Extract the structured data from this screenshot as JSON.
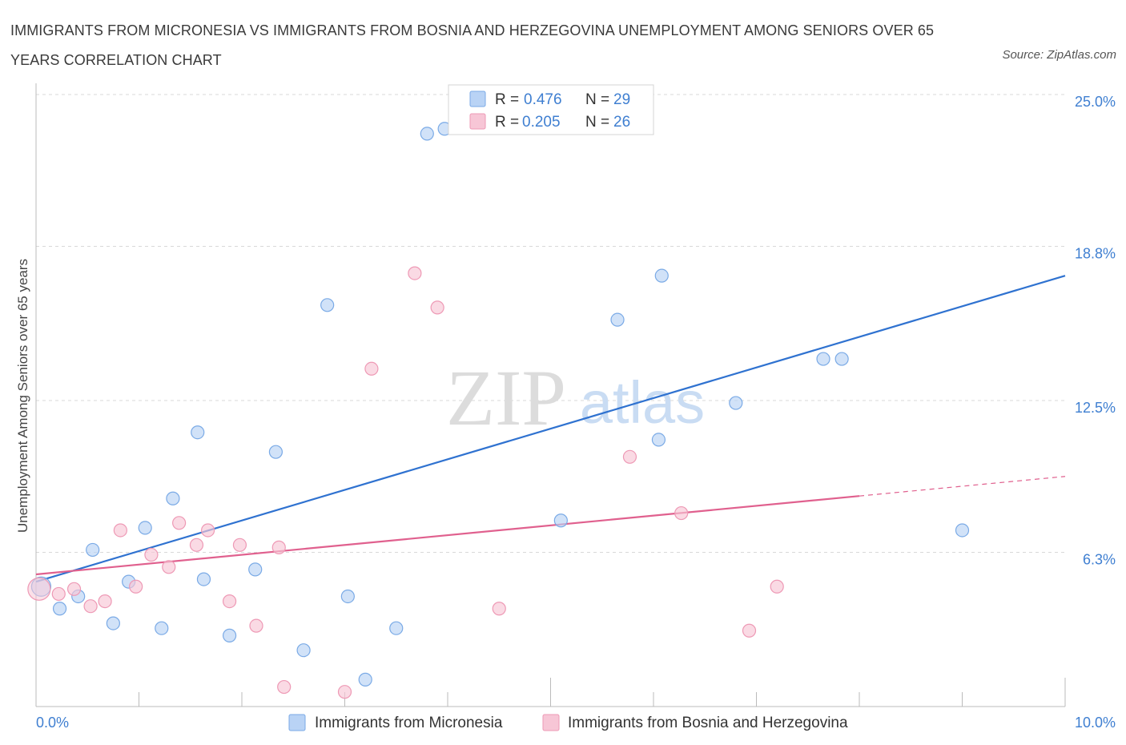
{
  "title": "IMMIGRANTS FROM MICRONESIA VS IMMIGRANTS FROM BOSNIA AND HERZEGOVINA UNEMPLOYMENT AMONG SENIORS OVER 65 YEARS CORRELATION CHART",
  "source": "Source: ZipAtlas.com",
  "watermark": {
    "zip": "ZIP",
    "atlas": "atlas"
  },
  "colors": {
    "blue_fill": "#b9d3f5",
    "blue_stroke": "#7aaae6",
    "blue_line": "#2f72d0",
    "pink_fill": "#f7c6d6",
    "pink_stroke": "#ee99b5",
    "pink_line": "#e0608e",
    "accent_text": "#3f7fd1",
    "grid": "#d9d9d9"
  },
  "legend": {
    "r_label": "R =",
    "n_label": "N =",
    "rows": [
      {
        "r": "0.476",
        "n": "29"
      },
      {
        "r": "0.205",
        "n": "26"
      }
    ]
  },
  "chart_data": {
    "type": "scatter",
    "title": "IMMIGRANTS FROM MICRONESIA VS IMMIGRANTS FROM BOSNIA AND HERZEGOVINA UNEMPLOYMENT AMONG SENIORS OVER 65 YEARS CORRELATION CHART",
    "xlabel": "",
    "ylabel": "Unemployment Among Seniors over 65 years",
    "xlim": [
      0,
      10
    ],
    "ylim": [
      0,
      25
    ],
    "x_tick_labels": [
      "0.0%",
      "10.0%"
    ],
    "y_ticks": [
      6.3,
      12.5,
      18.8,
      25.0
    ],
    "y_tick_labels": [
      "6.3%",
      "12.5%",
      "18.8%",
      "25.0%"
    ],
    "grid": true,
    "legend_position": "top-center",
    "series": [
      {
        "name": "Immigrants from Micronesia",
        "color": "#b9d3f5",
        "points": [
          [
            0.05,
            4.9
          ],
          [
            0.23,
            4.0
          ],
          [
            0.41,
            4.5
          ],
          [
            0.55,
            6.4
          ],
          [
            0.75,
            3.4
          ],
          [
            0.9,
            5.1
          ],
          [
            1.06,
            7.3
          ],
          [
            1.22,
            3.2
          ],
          [
            1.33,
            8.5
          ],
          [
            1.57,
            11.2
          ],
          [
            1.63,
            5.2
          ],
          [
            1.88,
            2.9
          ],
          [
            2.13,
            5.6
          ],
          [
            2.33,
            10.4
          ],
          [
            2.6,
            2.3
          ],
          [
            2.83,
            16.4
          ],
          [
            3.03,
            4.5
          ],
          [
            3.2,
            1.1
          ],
          [
            3.5,
            3.2
          ],
          [
            3.8,
            23.4
          ],
          [
            3.97,
            23.6
          ],
          [
            5.1,
            7.6
          ],
          [
            5.65,
            15.8
          ],
          [
            6.05,
            10.9
          ],
          [
            6.08,
            17.6
          ],
          [
            6.8,
            12.4
          ],
          [
            7.65,
            14.2
          ],
          [
            7.83,
            14.2
          ],
          [
            9.0,
            7.2
          ]
        ],
        "trend": {
          "x": [
            0,
            10
          ],
          "y": [
            5.1,
            17.6
          ]
        }
      },
      {
        "name": "Immigrants from Bosnia and Herzegovina",
        "color": "#f7c6d6",
        "points": [
          [
            0.03,
            4.8
          ],
          [
            0.22,
            4.6
          ],
          [
            0.37,
            4.8
          ],
          [
            0.53,
            4.1
          ],
          [
            0.67,
            4.3
          ],
          [
            0.82,
            7.2
          ],
          [
            0.97,
            4.9
          ],
          [
            1.12,
            6.2
          ],
          [
            1.29,
            5.7
          ],
          [
            1.39,
            7.5
          ],
          [
            1.56,
            6.6
          ],
          [
            1.67,
            7.2
          ],
          [
            1.88,
            4.3
          ],
          [
            1.98,
            6.6
          ],
          [
            2.14,
            3.3
          ],
          [
            2.36,
            6.5
          ],
          [
            2.41,
            0.8
          ],
          [
            3.0,
            0.6
          ],
          [
            3.26,
            13.8
          ],
          [
            3.68,
            17.7
          ],
          [
            3.9,
            16.3
          ],
          [
            4.5,
            4.0
          ],
          [
            5.77,
            10.2
          ],
          [
            6.27,
            7.9
          ],
          [
            6.93,
            3.1
          ],
          [
            7.2,
            4.9
          ]
        ],
        "trend": {
          "x": [
            0,
            8
          ],
          "y": [
            5.4,
            8.6
          ]
        },
        "trend_extension": {
          "x": [
            8,
            10
          ],
          "y": [
            8.6,
            9.4
          ]
        }
      }
    ]
  }
}
